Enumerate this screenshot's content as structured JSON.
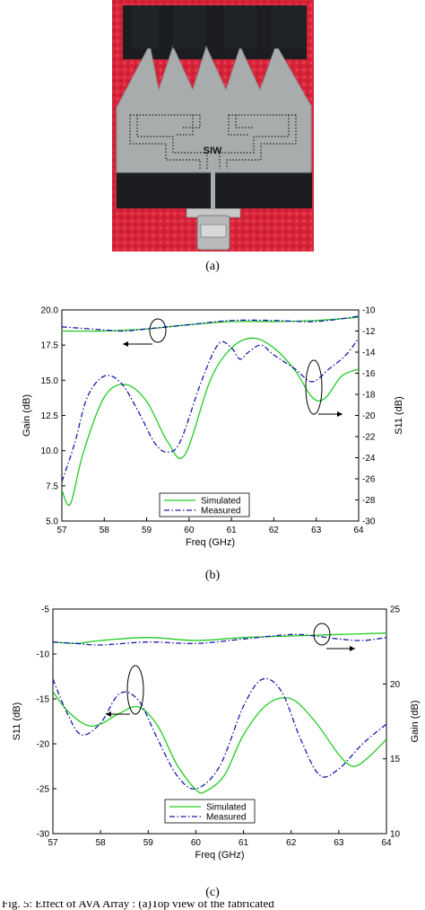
{
  "photo": {
    "label": "SIW",
    "colors": {
      "background": "#d9243a",
      "metal": "#a9acad",
      "black": "#1b1d20"
    }
  },
  "captions": {
    "a": "(a)",
    "b": "(b)",
    "c": "(c)"
  },
  "footer_text": "Fig. 5: Effect of AVA Array : (a)Top view of the fabricated",
  "chart_data": [
    {
      "type": "line",
      "xlabel": "Freq (GHz)",
      "ylabel": "Gain (dB)",
      "y2label": "S11 (dB)",
      "xlim": [
        57,
        64
      ],
      "ylim": [
        5.0,
        20.0
      ],
      "y2lim": [
        -30,
        -10
      ],
      "xticks": [
        "57",
        "58",
        "59",
        "60",
        "61",
        "62",
        "63",
        "64"
      ],
      "yticks": [
        "5.0",
        "7.5",
        "10.0",
        "12.5",
        "15.0",
        "17.5",
        "20.0"
      ],
      "y2ticks": [
        "-10",
        "-12",
        "-14",
        "-16",
        "-18",
        "-20",
        "-22",
        "-24",
        "-26",
        "-28",
        "-30"
      ],
      "legend": {
        "position": "bottom-center",
        "entries": [
          "Simulated",
          "Measured"
        ]
      },
      "series": [
        {
          "name": "Simulated",
          "axis": "left",
          "color": "#22cc22",
          "dash": "solid",
          "x": [
            57,
            57.2,
            57.5,
            58,
            58.5,
            59,
            59.5,
            59.9,
            60.5,
            61,
            61.5,
            62,
            62.5,
            62.9,
            63.2,
            63.6,
            64
          ],
          "values": [
            7.2,
            6.2,
            9.8,
            13.8,
            14.7,
            13.5,
            10.6,
            9.7,
            15.0,
            17.3,
            18.0,
            17.3,
            15.7,
            13.8,
            13.7,
            15.3,
            15.8
          ]
        },
        {
          "name": "Measured",
          "axis": "left",
          "color": "#1a1ab0",
          "dash": "dashdot",
          "x": [
            57,
            57.3,
            57.6,
            58,
            58.4,
            58.8,
            59.2,
            59.5,
            59.8,
            60.3,
            60.7,
            61,
            61.2,
            61.4,
            61.7,
            62,
            62.5,
            62.9,
            63.3,
            63.7,
            64
          ],
          "values": [
            7.8,
            10.5,
            13.8,
            15.3,
            14.8,
            12.8,
            10.5,
            9.9,
            10.7,
            15.0,
            17.6,
            17.3,
            16.5,
            17.0,
            17.5,
            16.8,
            15.8,
            14.9,
            15.8,
            16.8,
            18.0
          ]
        },
        {
          "name": "Simulated",
          "axis": "right",
          "color": "#22cc22",
          "dash": "solid",
          "x": [
            57,
            58,
            59,
            60,
            61,
            62,
            63,
            64
          ],
          "values": [
            -12.0,
            -12.0,
            -11.8,
            -11.4,
            -11.1,
            -11.1,
            -11.0,
            -10.7
          ]
        },
        {
          "name": "Measured",
          "axis": "right",
          "color": "#1a1ab0",
          "dash": "dashdot",
          "x": [
            57,
            58,
            58.5,
            59,
            60,
            61,
            62,
            63,
            64
          ],
          "values": [
            -11.6,
            -11.9,
            -12.0,
            -11.8,
            -11.4,
            -11.0,
            -11.0,
            -11.1,
            -10.6
          ]
        }
      ]
    },
    {
      "type": "line",
      "xlabel": "Freq (GHz)",
      "ylabel": "S11 (dB)",
      "y2label": "Gain (dB)",
      "xlim": [
        57,
        64
      ],
      "ylim": [
        -30,
        -5
      ],
      "y2lim": [
        10,
        25
      ],
      "xticks": [
        "57",
        "58",
        "59",
        "60",
        "61",
        "62",
        "63",
        "64"
      ],
      "yticks": [
        "-5",
        "-10",
        "-15",
        "-20",
        "-25",
        "-30"
      ],
      "y2ticks": [
        "25",
        "20",
        "15",
        "10"
      ],
      "legend": {
        "position": "bottom-center",
        "entries": [
          "Simulated",
          "Measured"
        ]
      },
      "series": [
        {
          "name": "Simulated",
          "axis": "left",
          "color": "#22cc22",
          "dash": "solid",
          "x": [
            57,
            57.3,
            57.7,
            58,
            58.4,
            58.8,
            59.2,
            59.6,
            60,
            60.2,
            60.6,
            61,
            61.5,
            62,
            62.5,
            63,
            63.3,
            63.6,
            64
          ],
          "values": [
            -14.2,
            -16.3,
            -17.9,
            -17.8,
            -16.6,
            -15.9,
            -18.0,
            -22.3,
            -25.1,
            -25.3,
            -23.5,
            -19.0,
            -15.6,
            -15.0,
            -17.5,
            -21.2,
            -22.5,
            -21.6,
            -19.5
          ]
        },
        {
          "name": "Measured",
          "axis": "left",
          "color": "#1a1ab0",
          "dash": "dashdot",
          "x": [
            57,
            57.3,
            57.6,
            58,
            58.4,
            58.8,
            59.2,
            59.6,
            60,
            60.5,
            61,
            61.4,
            61.8,
            62.2,
            62.6,
            63,
            63.5,
            64
          ],
          "values": [
            -12.8,
            -16.6,
            -19.0,
            -17.7,
            -14.4,
            -15.2,
            -19.5,
            -23.5,
            -25.0,
            -22.5,
            -15.8,
            -12.8,
            -14.2,
            -19.5,
            -23.5,
            -22.8,
            -20.0,
            -17.8
          ]
        },
        {
          "name": "Simulated",
          "axis": "right",
          "color": "#22cc22",
          "dash": "solid",
          "x": [
            57,
            57.5,
            58,
            59,
            60,
            61,
            62,
            63,
            64
          ],
          "values": [
            22.8,
            22.7,
            22.9,
            23.1,
            22.9,
            23.1,
            23.2,
            23.3,
            23.4
          ]
        },
        {
          "name": "Measured",
          "axis": "right",
          "color": "#1a1ab0",
          "dash": "dashdot",
          "x": [
            57,
            57.5,
            58,
            59,
            60,
            61,
            62,
            62.5,
            63,
            63.5,
            64
          ],
          "values": [
            22.8,
            22.7,
            22.6,
            22.8,
            22.7,
            23.0,
            23.3,
            23.2,
            23.0,
            22.9,
            23.1
          ]
        }
      ]
    }
  ]
}
